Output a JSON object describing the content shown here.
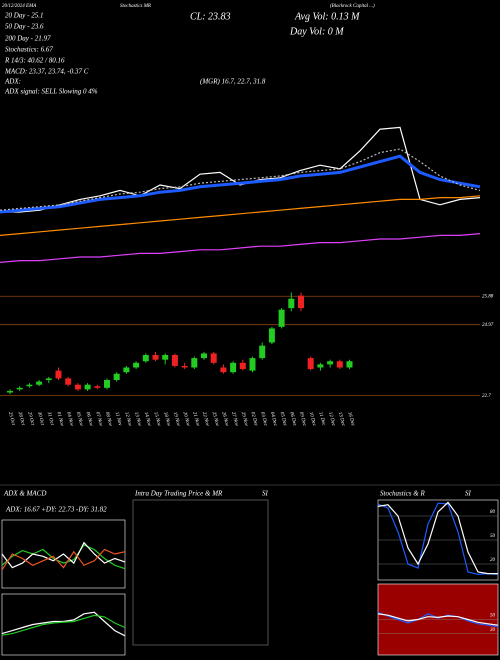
{
  "header": {
    "top_left": "20/12/2024 EMA",
    "top_mid": "Stochastics MR",
    "top_right": "(Blackrock Capital ...)",
    "ema20": "20 Day - 25.1",
    "ema50": "50 Day - 23.6",
    "ema200": "200 Day - 21.97",
    "stoch": "Stochastics: 6.67",
    "rsi": "R 14/3: 40.62 / 80.16",
    "macd": "MACD: 23.37, 23.74, -0.37 C",
    "adx": "ADX:",
    "adx_values": "(MGR) 16.7, 22.7, 31.8",
    "adx_signal": "ADX signal: SELL Slowing 0 4%",
    "close": "CL: 23.83",
    "avg_vol": "Avg Vol: 0.13 M",
    "day_vol": "Day Vol: 0 M"
  },
  "chart_data": [
    {
      "type": "line",
      "panels": [
        {
          "ylim": [
            0,
            100
          ],
          "series": [
            {
              "name": "Price",
              "color": "#ffffff",
              "values": [
                35,
                35,
                36,
                39,
                42,
                44,
                47,
                44,
                50,
                48,
                56,
                57,
                50,
                53,
                54,
                58,
                61,
                59,
                69,
                81,
                82,
                42,
                39,
                42,
                43
              ]
            },
            {
              "name": "EMA 20",
              "color": "#1e5bff",
              "values": [
                35,
                36,
                37,
                38,
                40,
                42,
                43,
                44,
                46,
                47,
                49,
                50,
                51,
                52,
                53,
                55,
                56,
                57,
                60,
                63,
                66,
                57,
                53,
                51,
                49
              ]
            },
            {
              "name": "SMA 20",
              "color": "#bbbbbb",
              "values": [
                36,
                37,
                38,
                39,
                41,
                43,
                45,
                46,
                48,
                49,
                51,
                52,
                53,
                54,
                55,
                57,
                58,
                59,
                63,
                68,
                70,
                63,
                55,
                50,
                47
              ]
            },
            {
              "name": "EMA 50",
              "color": "#ff8c00",
              "values": [
                22,
                23,
                24,
                25,
                26,
                27,
                28,
                29,
                30,
                31,
                32,
                33,
                34,
                35,
                36,
                37,
                38,
                39,
                40,
                41,
                42,
                42,
                43,
                43,
                44
              ]
            },
            {
              "name": "EMA 200",
              "color": "#e040fb",
              "values": [
                7,
                8,
                8,
                9,
                10,
                10,
                11,
                12,
                12,
                13,
                14,
                14,
                15,
                16,
                16,
                17,
                18,
                18,
                19,
                20,
                20,
                21,
                22,
                22,
                23
              ]
            }
          ]
        }
      ]
    },
    {
      "type": "candlestick",
      "ylim": [
        22.4,
        26.4
      ],
      "yticks": [
        22.7,
        24.97,
        25.88
      ],
      "up_color": "#22cc22",
      "down_color": "#ee2222",
      "categories": [
        "25 Oct",
        "28 Oct",
        "29 Oct",
        "30 Oct",
        "31 Oct",
        "01 Nov",
        "04 Nov",
        "05 Nov",
        "06 Nov",
        "07 Nov",
        "08 Nov",
        "11 Nov",
        "12 Nov",
        "13 Nov",
        "14 Nov",
        "15 Nov",
        "18 Nov",
        "19 Nov",
        "20 Nov",
        "21 Nov",
        "22 Nov",
        "25 Nov",
        "26 Nov",
        "27 Nov",
        "29 Nov",
        "02 Dec",
        "03 Dec",
        "04 Dec",
        "05 Dec",
        "06 Dec",
        "09 Dec",
        "10 Dec",
        "11 Dec",
        "12 Dec",
        "13 Dec",
        "16 Dec"
      ],
      "open": [
        22.8,
        22.9,
        23.0,
        23.05,
        23.2,
        23.5,
        23.25,
        23.05,
        22.9,
        23.0,
        22.95,
        23.2,
        23.45,
        23.6,
        23.8,
        24.0,
        23.85,
        24.0,
        23.65,
        23.6,
        23.9,
        24.05,
        23.6,
        23.45,
        23.75,
        23.5,
        23.9,
        24.4,
        24.9,
        25.5,
        25.9,
        23.9,
        23.6,
        23.7,
        23.8,
        23.6
      ],
      "high": [
        22.9,
        23.0,
        23.1,
        23.2,
        23.3,
        23.6,
        23.3,
        23.1,
        23.1,
        23.05,
        23.25,
        23.45,
        23.65,
        23.8,
        24.05,
        24.1,
        24.05,
        24.05,
        23.75,
        23.95,
        24.1,
        24.1,
        23.7,
        23.8,
        23.85,
        23.95,
        24.4,
        24.9,
        25.5,
        26.0,
        26.0,
        23.95,
        23.75,
        23.85,
        23.85,
        23.85
      ],
      "low": [
        22.75,
        22.85,
        22.95,
        23.0,
        23.1,
        23.2,
        23.0,
        22.85,
        22.85,
        22.9,
        22.9,
        23.15,
        23.4,
        23.55,
        23.75,
        23.8,
        23.7,
        23.6,
        23.55,
        23.55,
        23.85,
        23.7,
        23.4,
        23.4,
        23.5,
        23.45,
        23.85,
        24.35,
        24.85,
        25.4,
        25.4,
        23.5,
        23.5,
        23.6,
        23.55,
        23.55
      ],
      "close": [
        22.85,
        22.95,
        23.05,
        23.15,
        23.25,
        23.25,
        23.05,
        22.9,
        23.05,
        22.95,
        23.2,
        23.4,
        23.6,
        23.75,
        24.0,
        23.85,
        24.0,
        23.65,
        23.6,
        23.9,
        24.05,
        23.75,
        23.45,
        23.75,
        23.55,
        23.9,
        24.3,
        24.85,
        25.45,
        25.8,
        25.5,
        23.55,
        23.7,
        23.8,
        23.6,
        23.8
      ]
    },
    {
      "type": "line",
      "title": "ADX & MACD",
      "subtitle": "ADX: 16.67 +DY: 22.73 -DY: 31.82",
      "panels": [
        {
          "ylim": [
            0,
            60
          ],
          "series": [
            {
              "name": "ADX",
              "color": "#22cc22",
              "values": [
                20,
                28,
                33,
                30,
                34,
                26,
                22,
                25,
                38,
                34,
                26,
                20,
                17
              ]
            },
            {
              "name": "+DI",
              "color": "#ffffff",
              "values": [
                30,
                18,
                22,
                30,
                28,
                24,
                30,
                22,
                40,
                30,
                22,
                26,
                23
              ]
            },
            {
              "name": "-DI",
              "color": "#ee5522",
              "values": [
                16,
                30,
                26,
                20,
                24,
                28,
                18,
                32,
                20,
                24,
                34,
                30,
                32
              ]
            }
          ]
        },
        {
          "ylim": [
            -1,
            1
          ],
          "series": [
            {
              "name": "MACD",
              "color": "#ffffff",
              "values": [
                -0.3,
                -0.2,
                -0.1,
                0.0,
                0.05,
                0.1,
                0.1,
                0.15,
                0.35,
                0.4,
                0.1,
                -0.2,
                -0.37
              ]
            },
            {
              "name": "Signal",
              "color": "#22cc22",
              "values": [
                -0.35,
                -0.3,
                -0.2,
                -0.1,
                0.0,
                0.05,
                0.08,
                0.1,
                0.2,
                0.3,
                0.25,
                0.05,
                -0.1
              ]
            }
          ]
        }
      ]
    },
    {
      "type": "empty",
      "title": "Intra Day Trading Price & MR",
      "title_right": "SI"
    },
    {
      "type": "line",
      "title": "Stochastics & R",
      "title_right": "SI",
      "panels": [
        {
          "ylim": [
            0,
            100
          ],
          "yticks": [
            20,
            50,
            80
          ],
          "series": [
            {
              "name": "%K",
              "color": "#1e5bff",
              "values": [
                95,
                90,
                60,
                20,
                15,
                70,
                96,
                95,
                60,
                10,
                7,
                8,
                7
              ]
            },
            {
              "name": "%D",
              "color": "#ffffff",
              "values": [
                92,
                94,
                80,
                40,
                20,
                45,
                85,
                97,
                80,
                35,
                10,
                8,
                8
              ]
            }
          ]
        },
        {
          "ylim": [
            0,
            100
          ],
          "yticks": [
            30,
            50
          ],
          "background": "#9b0000",
          "series": [
            {
              "name": "RSI",
              "color": "#1e5bff",
              "values": [
                60,
                55,
                50,
                45,
                50,
                58,
                52,
                56,
                54,
                48,
                44,
                42,
                40
              ]
            },
            {
              "name": "RSI avg",
              "color": "#ffffff",
              "values": [
                58,
                56,
                52,
                48,
                50,
                54,
                53,
                55,
                54,
                50,
                46,
                44,
                42
              ]
            }
          ]
        }
      ]
    }
  ]
}
